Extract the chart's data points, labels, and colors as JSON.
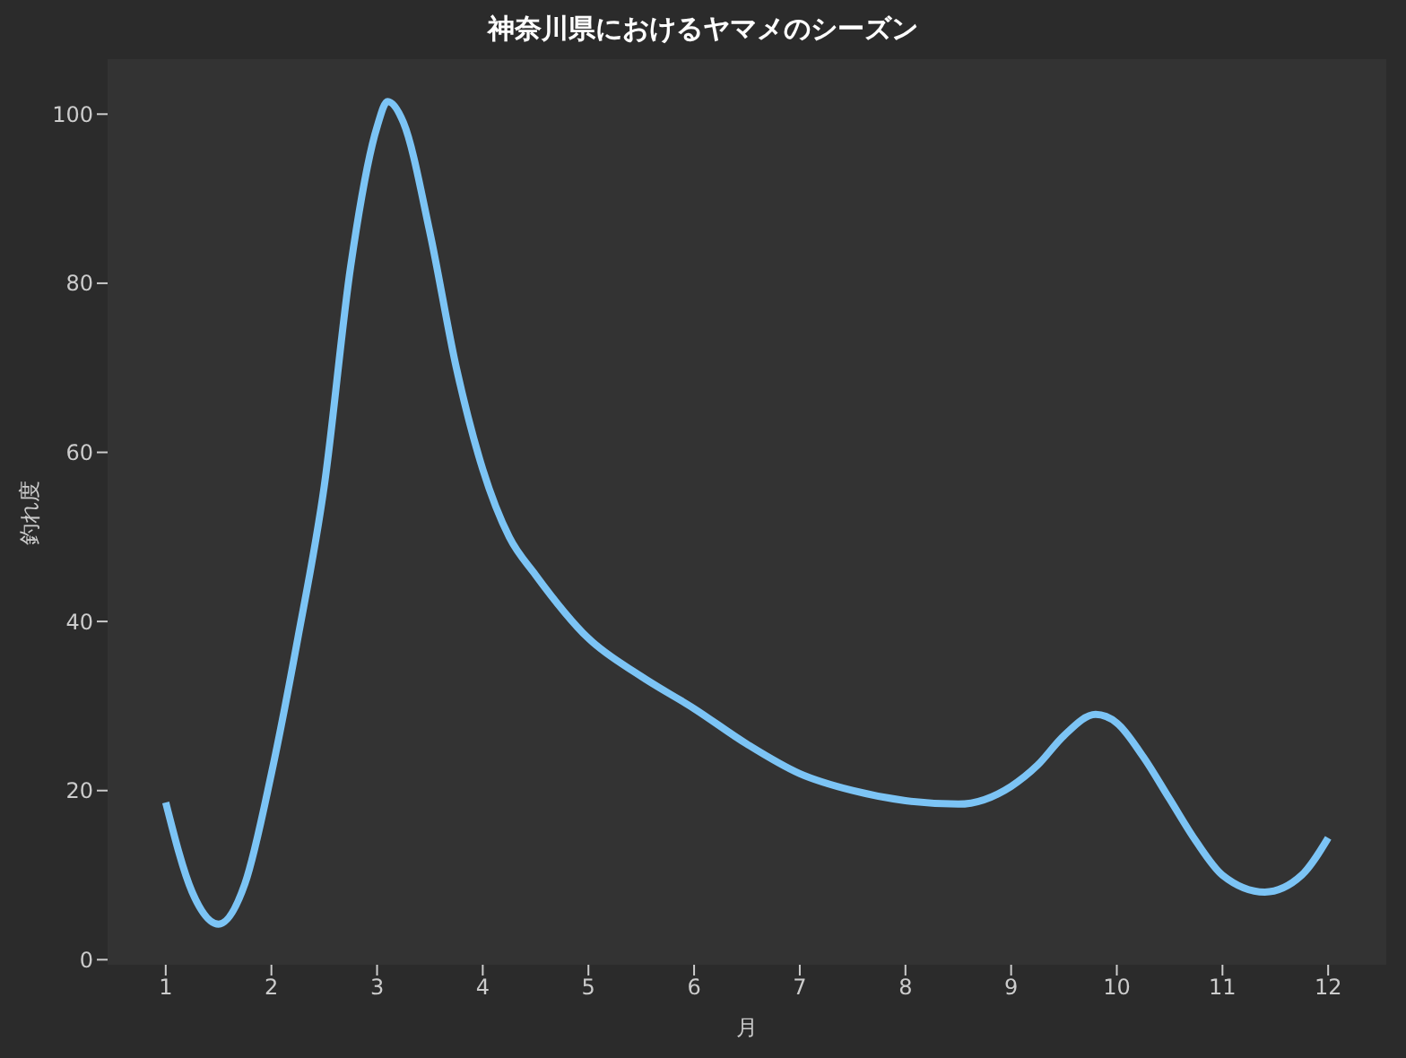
{
  "chart_data": {
    "type": "line",
    "title": "神奈川県におけるヤマメのシーズン",
    "xlabel": "月",
    "ylabel": "釣れ度",
    "x": [
      1,
      1.25,
      1.5,
      1.75,
      2,
      2.25,
      2.5,
      2.75,
      3,
      3.1,
      3.25,
      3.5,
      3.75,
      4,
      4.25,
      4.5,
      5,
      5.5,
      6,
      6.5,
      7,
      7.5,
      8,
      8.5,
      9,
      9.25,
      9.5,
      9.8,
      10,
      10.25,
      10.5,
      10.75,
      11,
      11.4,
      11.75,
      12
    ],
    "series": [
      {
        "color": "#7cc4f5",
        "values": [
          18.6,
          8,
          4.2,
          9,
          22,
          38,
          56,
          82,
          98.5,
          101.5,
          99,
          86,
          70,
          58,
          50,
          45.5,
          38,
          33.5,
          29.7,
          25.5,
          22,
          20,
          18.8,
          18.4,
          20.5,
          23,
          26.5,
          29,
          28,
          24,
          19,
          14,
          10,
          8,
          10,
          14.4
        ]
      }
    ],
    "xlim": [
      0.45,
      12.55
    ],
    "xticks": [
      1,
      2,
      3,
      4,
      5,
      6,
      7,
      8,
      9,
      10,
      11,
      12
    ],
    "ylim": [
      -0.6,
      106.5
    ],
    "yticks": [
      0,
      20,
      40,
      60,
      80,
      100
    ],
    "grid": false,
    "marker": "none",
    "line_style": "solid"
  }
}
